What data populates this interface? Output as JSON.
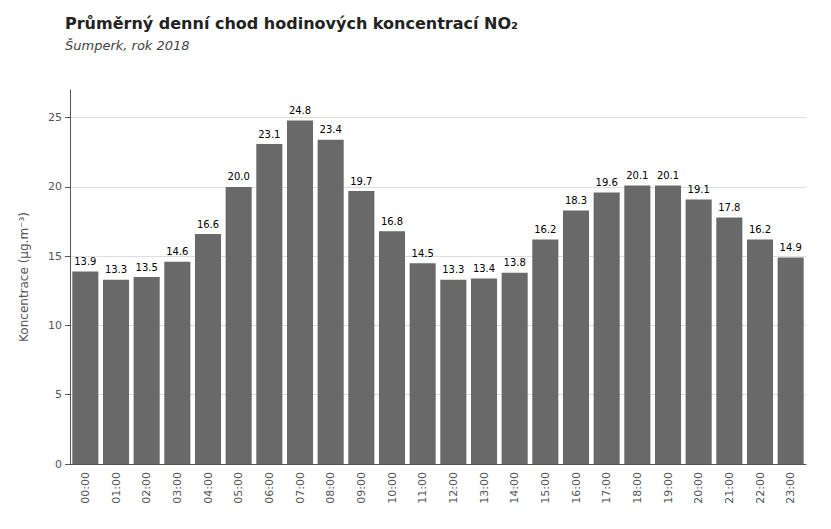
{
  "chart_data": {
    "type": "bar",
    "title": "Průměrný denní chod hodinových koncentrací NO₂",
    "subtitle": "Šumperk, rok 2018",
    "ylabel": "Koncentrace (µg.m⁻³)",
    "categories": [
      "00:00",
      "01:00",
      "02:00",
      "03:00",
      "04:00",
      "05:00",
      "06:00",
      "07:00",
      "08:00",
      "09:00",
      "10:00",
      "11:00",
      "12:00",
      "13:00",
      "14:00",
      "15:00",
      "16:00",
      "17:00",
      "18:00",
      "19:00",
      "20:00",
      "21:00",
      "22:00",
      "23:00"
    ],
    "values": [
      13.9,
      13.3,
      13.5,
      14.6,
      16.6,
      20.0,
      23.1,
      24.8,
      23.4,
      19.7,
      16.8,
      14.5,
      13.3,
      13.4,
      13.8,
      16.2,
      18.3,
      19.6,
      20.1,
      20.1,
      19.1,
      17.8,
      16.2,
      14.9
    ],
    "value_labels": [
      "13.9",
      "13.3",
      "13.5",
      "14.6",
      "16.6",
      "20.0",
      "23.1",
      "24.8",
      "23.4",
      "19.7",
      "16.8",
      "14.5",
      "13.3",
      "13.4",
      "13.8",
      "16.2",
      "18.3",
      "19.6",
      "20.1",
      "20.1",
      "19.1",
      "17.8",
      "16.2",
      "14.9"
    ],
    "color": "#696969",
    "ylim": [
      0,
      27
    ],
    "yticks": [
      0,
      5,
      10,
      15,
      20,
      25
    ],
    "grid": true,
    "data_labels": true
  }
}
